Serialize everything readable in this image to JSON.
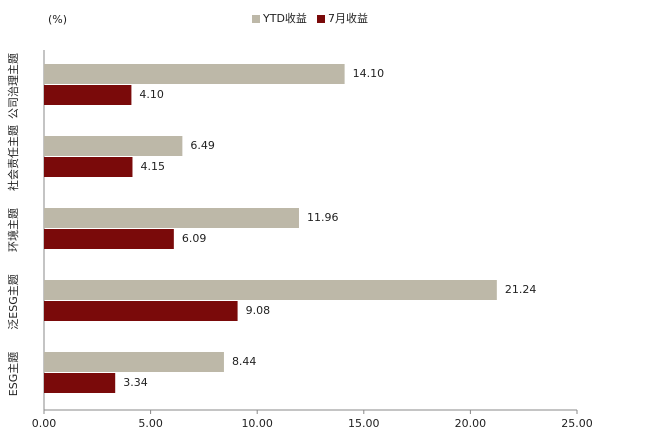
{
  "chart_data": {
    "type": "bar",
    "orientation": "horizontal",
    "unit_label": "(%)",
    "categories": [
      "公司治理主题",
      "社会责任主题",
      "环境主题",
      "泛ESG主题",
      "ESG主题"
    ],
    "series": [
      {
        "name": "YTD收益",
        "color": "#bdb8a8",
        "values": [
          14.1,
          6.49,
          11.96,
          21.24,
          8.44
        ],
        "value_labels": [
          "14.10",
          "6.49",
          "11.96",
          "21.24",
          "8.44"
        ]
      },
      {
        "name": "7月收益",
        "color": "#7a0a0a",
        "values": [
          4.1,
          4.15,
          6.09,
          9.08,
          3.34
        ],
        "value_labels": [
          "4.10",
          "4.15",
          "6.09",
          "9.08",
          "3.34"
        ]
      }
    ],
    "xlim": [
      0,
      25
    ],
    "xticks": [
      {
        "value": 0,
        "label": "0.00"
      },
      {
        "value": 5,
        "label": "5.00"
      },
      {
        "value": 10,
        "label": "10.00"
      },
      {
        "value": 15,
        "label": "15.00"
      },
      {
        "value": 20,
        "label": "20.00"
      },
      {
        "value": 25,
        "label": "25.00"
      }
    ],
    "legend": "top"
  }
}
